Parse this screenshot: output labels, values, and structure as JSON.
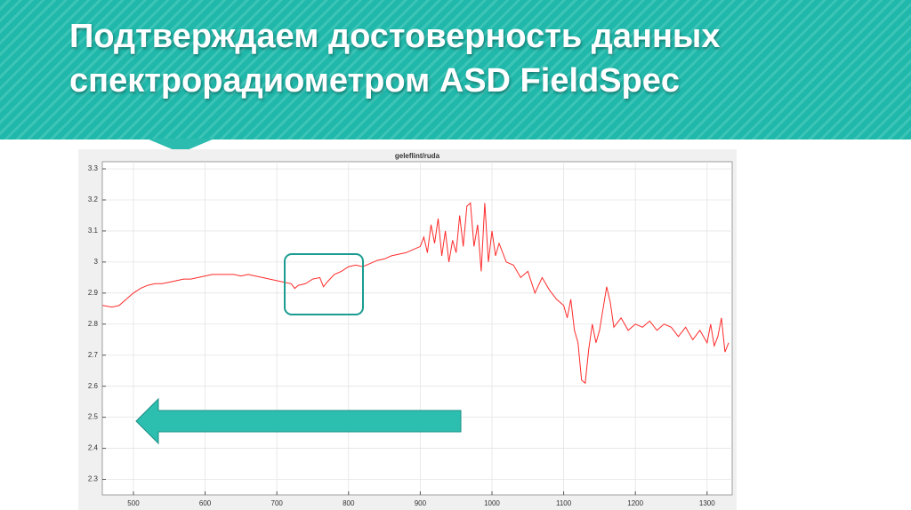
{
  "slide": {
    "title_lines": [
      "Подтверждаем достоверность данных",
      "спектрорадиометром ASD FieldSpec"
    ]
  },
  "chart_data": {
    "type": "line",
    "title": "geleflint/ruda",
    "color": "#ff2a2a",
    "grid": true,
    "xlim": [
      456.6,
      1335
    ],
    "ylim": [
      2.25,
      3.323
    ],
    "xticks": [
      500,
      600,
      700,
      800,
      900,
      1000,
      1100,
      1200,
      1300
    ],
    "yticks": [
      2.3,
      2.4,
      2.5,
      2.6,
      2.7,
      2.8,
      2.9,
      3,
      3.1,
      3.2,
      3.3
    ],
    "x": [
      457,
      470,
      480,
      490,
      500,
      510,
      520,
      530,
      540,
      550,
      560,
      570,
      580,
      590,
      600,
      610,
      620,
      630,
      640,
      650,
      660,
      670,
      680,
      690,
      700,
      710,
      720,
      725,
      730,
      740,
      750,
      760,
      765,
      770,
      780,
      790,
      800,
      810,
      820,
      830,
      840,
      850,
      860,
      870,
      880,
      890,
      900,
      905,
      910,
      915,
      920,
      925,
      930,
      935,
      940,
      945,
      950,
      955,
      960,
      965,
      970,
      975,
      980,
      985,
      990,
      995,
      1000,
      1005,
      1010,
      1020,
      1030,
      1040,
      1050,
      1060,
      1070,
      1080,
      1090,
      1100,
      1105,
      1110,
      1115,
      1120,
      1125,
      1130,
      1135,
      1140,
      1145,
      1150,
      1155,
      1160,
      1165,
      1170,
      1180,
      1190,
      1200,
      1210,
      1220,
      1230,
      1240,
      1250,
      1260,
      1270,
      1280,
      1290,
      1300,
      1305,
      1310,
      1315,
      1320,
      1325,
      1330
    ],
    "values": [
      2.86,
      2.855,
      2.86,
      2.88,
      2.9,
      2.915,
      2.925,
      2.93,
      2.93,
      2.935,
      2.94,
      2.945,
      2.945,
      2.95,
      2.955,
      2.96,
      2.96,
      2.96,
      2.96,
      2.955,
      2.96,
      2.955,
      2.95,
      2.945,
      2.94,
      2.935,
      2.93,
      2.915,
      2.925,
      2.93,
      2.945,
      2.95,
      2.92,
      2.935,
      2.96,
      2.97,
      2.985,
      2.99,
      2.985,
      2.995,
      3.005,
      3.01,
      3.02,
      3.025,
      3.03,
      3.04,
      3.05,
      3.08,
      3.03,
      3.12,
      3.06,
      3.14,
      3.02,
      3.1,
      3.0,
      3.07,
      3.03,
      3.15,
      3.05,
      3.18,
      3.19,
      3.05,
      3.12,
      2.97,
      3.19,
      3.0,
      3.1,
      3.02,
      3.06,
      3.0,
      2.99,
      2.95,
      2.97,
      2.9,
      2.95,
      2.91,
      2.88,
      2.86,
      2.82,
      2.88,
      2.78,
      2.74,
      2.62,
      2.61,
      2.72,
      2.8,
      2.74,
      2.78,
      2.85,
      2.92,
      2.87,
      2.79,
      2.82,
      2.78,
      2.8,
      2.79,
      2.81,
      2.78,
      2.8,
      2.79,
      2.76,
      2.79,
      2.75,
      2.78,
      2.74,
      2.8,
      2.73,
      2.76,
      2.82,
      2.71,
      2.74
    ]
  }
}
